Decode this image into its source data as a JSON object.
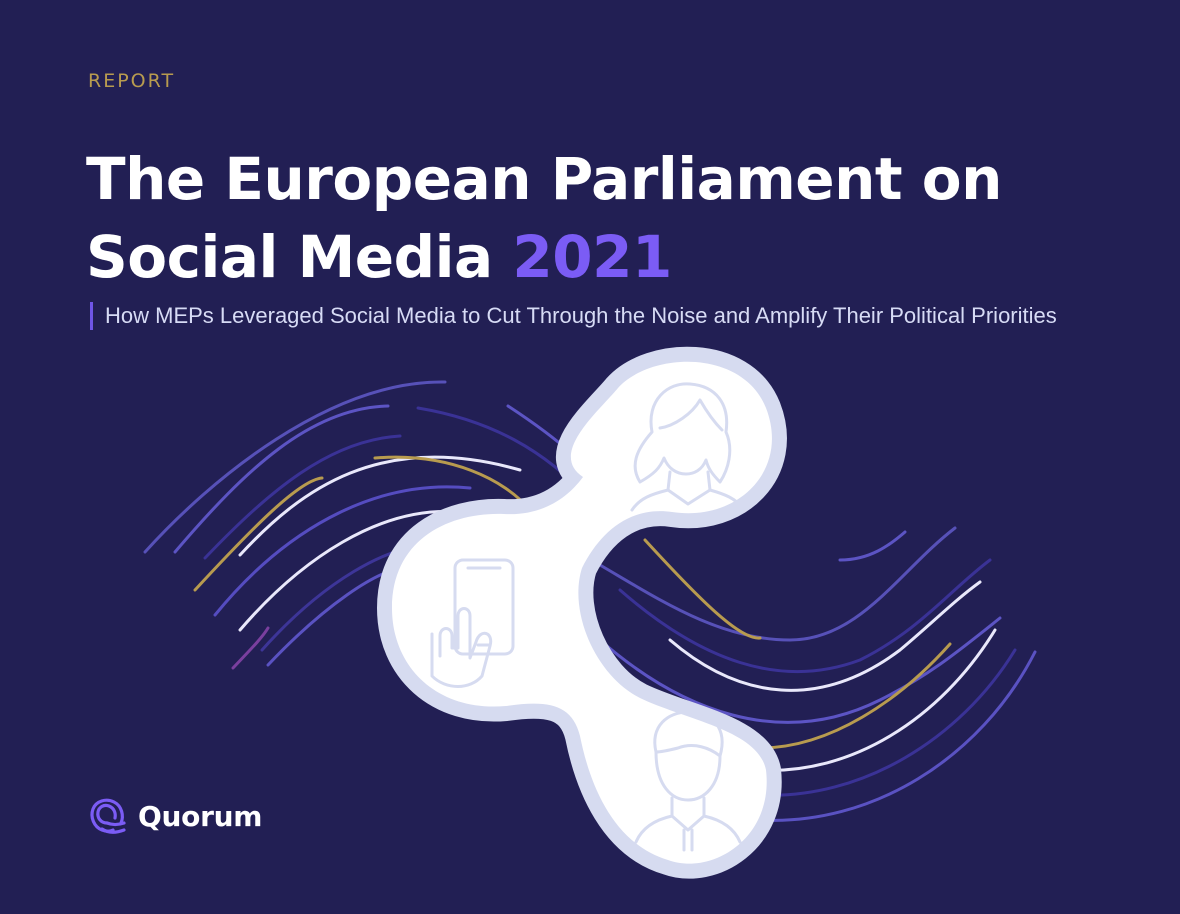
{
  "report": {
    "eyebrow": "REPORT",
    "title_line1": "The European Parliament on",
    "title_line2": "Social Media",
    "title_year": "2021",
    "subtitle": "How MEPs Leveraged Social Media to Cut Through the Noise and Amplify Their Political Priorities"
  },
  "brand": {
    "name": "Quorum",
    "logo_icon": "quorum-logo-icon"
  },
  "illustration": {
    "icons": [
      "woman-avatar-icon",
      "smartphone-tap-icon",
      "man-avatar-icon"
    ]
  },
  "colors": {
    "background": "#221f54",
    "accent_purple": "#7b5cf5",
    "accent_gold": "#b89b4f",
    "bubble_fill": "#ffffff",
    "bubble_outline": "#d6dbf0"
  }
}
